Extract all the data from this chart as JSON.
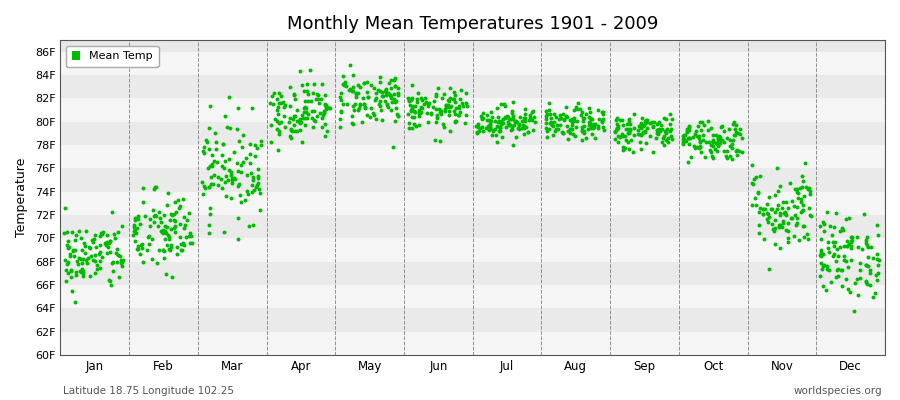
{
  "title": "Monthly Mean Temperatures 1901 - 2009",
  "ylabel": "Temperature",
  "xlabel_bottom_left": "Latitude 18.75 Longitude 102.25",
  "xlabel_bottom_right": "worldspecies.org",
  "legend_label": "Mean Temp",
  "dot_color": "#00BB00",
  "bg_color": "#FFFFFF",
  "plot_bg_color": "#E8E8E8",
  "band_color_light": "#EFEFEF",
  "band_color_dark": "#E0E0E0",
  "grid_color": "#666666",
  "ytick_labels": [
    "60F",
    "62F",
    "64F",
    "66F",
    "68F",
    "70F",
    "72F",
    "74F",
    "76F",
    "78F",
    "80F",
    "82F",
    "84F",
    "86F"
  ],
  "ytick_values": [
    60,
    62,
    64,
    66,
    68,
    70,
    72,
    74,
    76,
    78,
    80,
    82,
    84,
    86
  ],
  "months": [
    "Jan",
    "Feb",
    "Mar",
    "Apr",
    "May",
    "Jun",
    "Jul",
    "Aug",
    "Sep",
    "Oct",
    "Nov",
    "Dec"
  ],
  "ylim": [
    60,
    87
  ],
  "num_years": 109,
  "monthly_mean_F": [
    68.5,
    70.5,
    76.0,
    81.0,
    82.0,
    81.0,
    80.0,
    79.8,
    79.2,
    78.5,
    72.5,
    68.5
  ],
  "monthly_std_F": [
    1.5,
    1.8,
    2.2,
    1.3,
    1.2,
    0.9,
    0.7,
    0.7,
    0.8,
    0.9,
    1.8,
    1.8
  ],
  "seed": 42
}
